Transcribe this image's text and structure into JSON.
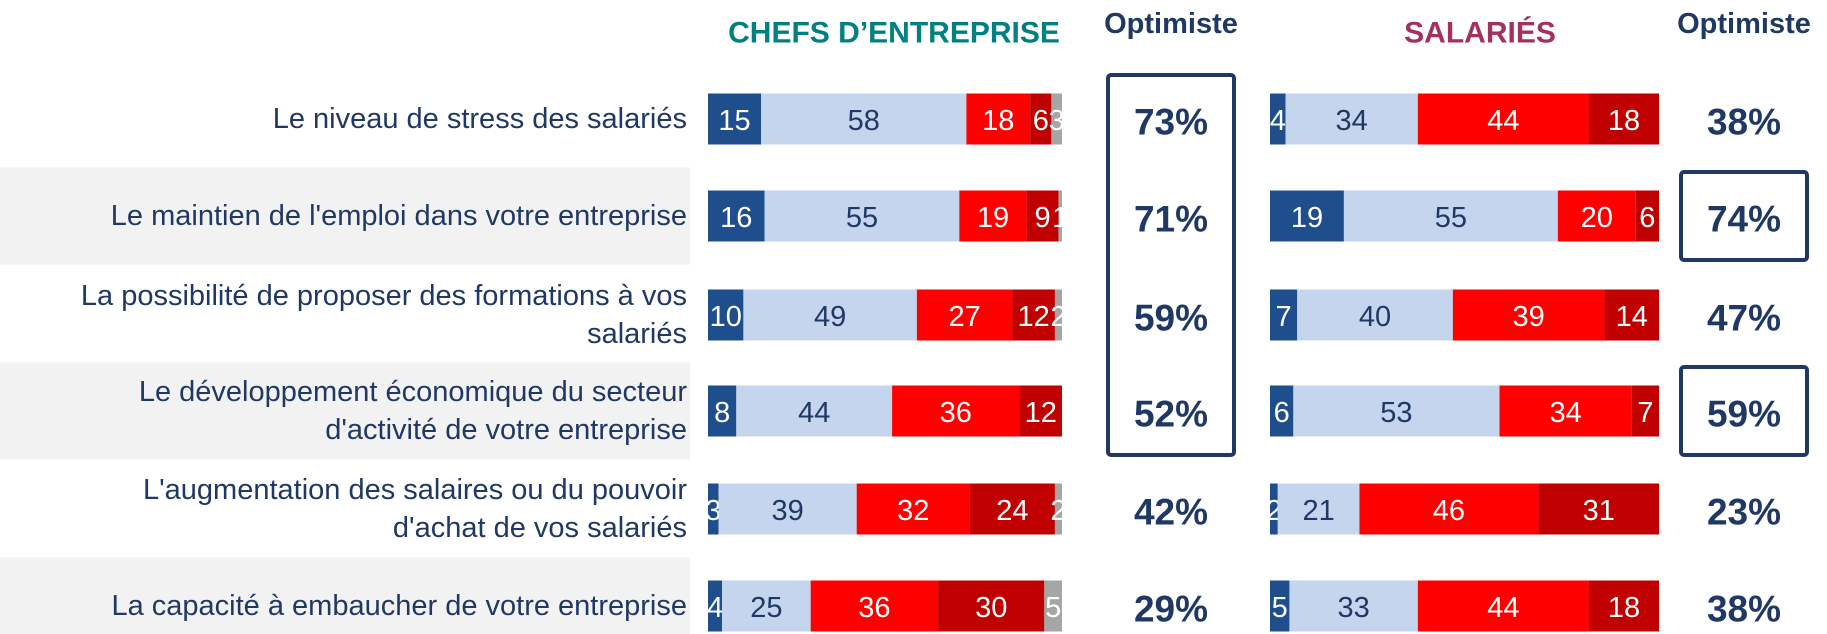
{
  "chart_data": [
    {
      "type": "bar",
      "orientation": "horizontal",
      "stacked": true,
      "title": "CHEFS D’ENTREPRISE",
      "title_color": "#008080",
      "categories": [
        "Le niveau de stress des salariés",
        "Le maintien de l'emploi dans votre entreprise",
        "La possibilité de proposer des formations à vos salariés",
        "Le développement économique du secteur d'activité de votre entreprise",
        "L'augmentation des salaires ou du pouvoir d'achat de vos salariés",
        "La capacité à embaucher de votre entreprise"
      ],
      "series": [
        {
          "color": "#1f4e8c",
          "label_color": "#ffffff",
          "values": [
            15,
            16,
            10,
            8,
            3,
            4
          ]
        },
        {
          "color": "#c5d5ee",
          "label_color": "#1f3864",
          "values": [
            58,
            55,
            49,
            44,
            39,
            25
          ]
        },
        {
          "color": "#ff0000",
          "label_color": "#ffffff",
          "values": [
            18,
            19,
            27,
            36,
            32,
            36
          ]
        },
        {
          "color": "#c00000",
          "label_color": "#ffffff",
          "values": [
            6,
            9,
            12,
            12,
            24,
            30
          ]
        },
        {
          "color": "#a6a6a6",
          "label_color": "#ffffff",
          "values": [
            3,
            1,
            2,
            null,
            2,
            5
          ]
        }
      ],
      "xlim": [
        0,
        100
      ],
      "summary_title": "Optimiste",
      "summary_values": [
        73,
        71,
        59,
        52,
        42,
        29
      ],
      "summary_value_labels": [
        "73%",
        "71%",
        "59%",
        "52%",
        "42%",
        "29%"
      ],
      "highlighted": [
        0,
        1,
        2,
        3
      ]
    },
    {
      "type": "bar",
      "orientation": "horizontal",
      "stacked": true,
      "title": "SALARIÉS",
      "title_color": "#a3305f",
      "series": [
        {
          "color": "#1f4e8c",
          "label_color": "#ffffff",
          "values": [
            4,
            19,
            7,
            6,
            2,
            5
          ]
        },
        {
          "color": "#c5d5ee",
          "label_color": "#1f3864",
          "values": [
            34,
            55,
            40,
            53,
            21,
            33
          ]
        },
        {
          "color": "#ff0000",
          "label_color": "#ffffff",
          "values": [
            44,
            20,
            39,
            34,
            46,
            44
          ]
        },
        {
          "color": "#c00000",
          "label_color": "#ffffff",
          "values": [
            18,
            6,
            14,
            7,
            31,
            18
          ]
        }
      ],
      "xlim": [
        0,
        100
      ],
      "summary_title": "Optimiste",
      "summary_values": [
        38,
        74,
        47,
        59,
        23,
        38
      ],
      "summary_value_labels": [
        "38%",
        "74%",
        "47%",
        "59%",
        "23%",
        "38%"
      ],
      "highlighted": [
        1,
        3
      ]
    }
  ]
}
